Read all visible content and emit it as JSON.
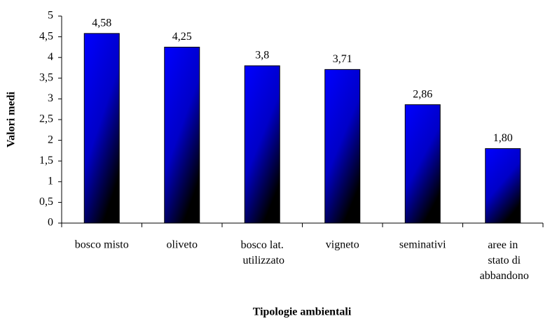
{
  "chart_data": {
    "type": "bar",
    "categories": [
      "bosco misto",
      "oliveto",
      "bosco lat. utilizzato",
      "vigneto",
      "seminativi",
      "aree in stato di abbandono"
    ],
    "values": [
      4.58,
      4.25,
      3.8,
      3.71,
      2.86,
      1.8
    ],
    "value_labels": [
      "4,58",
      "4,25",
      "3,8",
      "3,71",
      "2,86",
      "1,80"
    ],
    "color": "#0000ff",
    "ylim": [
      0,
      5
    ],
    "yticks": [
      0,
      {
        "value": 0.5,
        "label": "0,5"
      },
      1,
      {
        "value": 1.5,
        "label": "1,5"
      },
      2,
      {
        "value": 2.5,
        "label": "2,5"
      },
      3,
      {
        "value": 3.5,
        "label": "3,5"
      },
      4,
      {
        "value": 4.5,
        "label": "4,5"
      },
      5
    ],
    "xlabel": "Tipologie ambientali",
    "ylabel": "Valori medi"
  }
}
